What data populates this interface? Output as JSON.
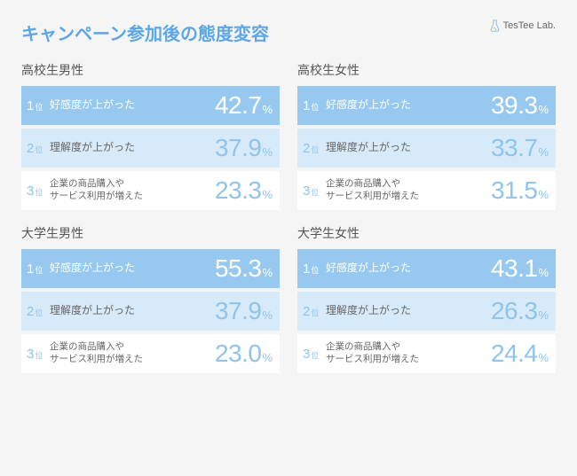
{
  "title": "キャンペーン参加後の態度変容",
  "brand": "TesTee Lab.",
  "rank_suffix": "位",
  "percent_sign": "%",
  "colors": {
    "title": "#5da6e8",
    "row1_bg": "#97c9f0",
    "row2_bg": "#d7eaf9",
    "row3_bg": "#ffffff",
    "accent_text": "#8fc4ec",
    "body_bg": "#f5f5f5"
  },
  "panels": [
    {
      "title": "高校生男性",
      "rows": [
        {
          "rank": "1",
          "label": "好感度が上がった",
          "value": "42.7"
        },
        {
          "rank": "2",
          "label": "理解度が上がった",
          "value": "37.9"
        },
        {
          "rank": "3",
          "label": "企業の商品購入や\nサービス利用が増えた",
          "value": "23.3"
        }
      ]
    },
    {
      "title": "高校生女性",
      "rows": [
        {
          "rank": "1",
          "label": "好感度が上がった",
          "value": "39.3"
        },
        {
          "rank": "2",
          "label": "理解度が上がった",
          "value": "33.7"
        },
        {
          "rank": "3",
          "label": "企業の商品購入や\nサービス利用が増えた",
          "value": "31.5"
        }
      ]
    },
    {
      "title": "大学生男性",
      "rows": [
        {
          "rank": "1",
          "label": "好感度が上がった",
          "value": "55.3"
        },
        {
          "rank": "2",
          "label": "理解度が上がった",
          "value": "37.9"
        },
        {
          "rank": "3",
          "label": "企業の商品購入や\nサービス利用が増えた",
          "value": "23.0"
        }
      ]
    },
    {
      "title": "大学生女性",
      "rows": [
        {
          "rank": "1",
          "label": "好感度が上がった",
          "value": "43.1"
        },
        {
          "rank": "2",
          "label": "理解度が上がった",
          "value": "26.3"
        },
        {
          "rank": "3",
          "label": "企業の商品購入や\nサービス利用が増えた",
          "value": "24.4"
        }
      ]
    }
  ]
}
